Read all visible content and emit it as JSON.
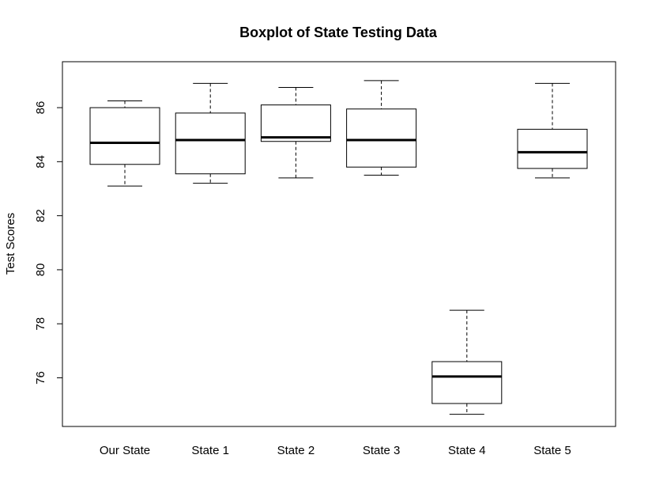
{
  "chart_data": {
    "type": "boxplot",
    "title": "Boxplot of State Testing Data",
    "xlabel": "",
    "ylabel": "Test Scores",
    "ylim": [
      74.2,
      87.7
    ],
    "yticks": [
      76,
      78,
      80,
      82,
      84,
      86
    ],
    "categories": [
      "Our State",
      "State 1",
      "State 2",
      "State 3",
      "State 4",
      "State 5"
    ],
    "boxes": [
      {
        "min": 83.1,
        "q1": 83.9,
        "median": 84.7,
        "q3": 86.0,
        "max": 86.25
      },
      {
        "min": 83.2,
        "q1": 83.55,
        "median": 84.8,
        "q3": 85.8,
        "max": 86.9
      },
      {
        "min": 83.4,
        "q1": 84.75,
        "median": 84.9,
        "q3": 86.1,
        "max": 86.75
      },
      {
        "min": 83.5,
        "q1": 83.8,
        "median": 84.8,
        "q3": 85.95,
        "max": 87.0
      },
      {
        "min": 74.65,
        "q1": 75.05,
        "median": 76.05,
        "q3": 76.6,
        "max": 78.5
      },
      {
        "min": 83.4,
        "q1": 83.75,
        "median": 84.35,
        "q3": 85.2,
        "max": 86.9
      }
    ],
    "grid": false,
    "legend": "none"
  }
}
